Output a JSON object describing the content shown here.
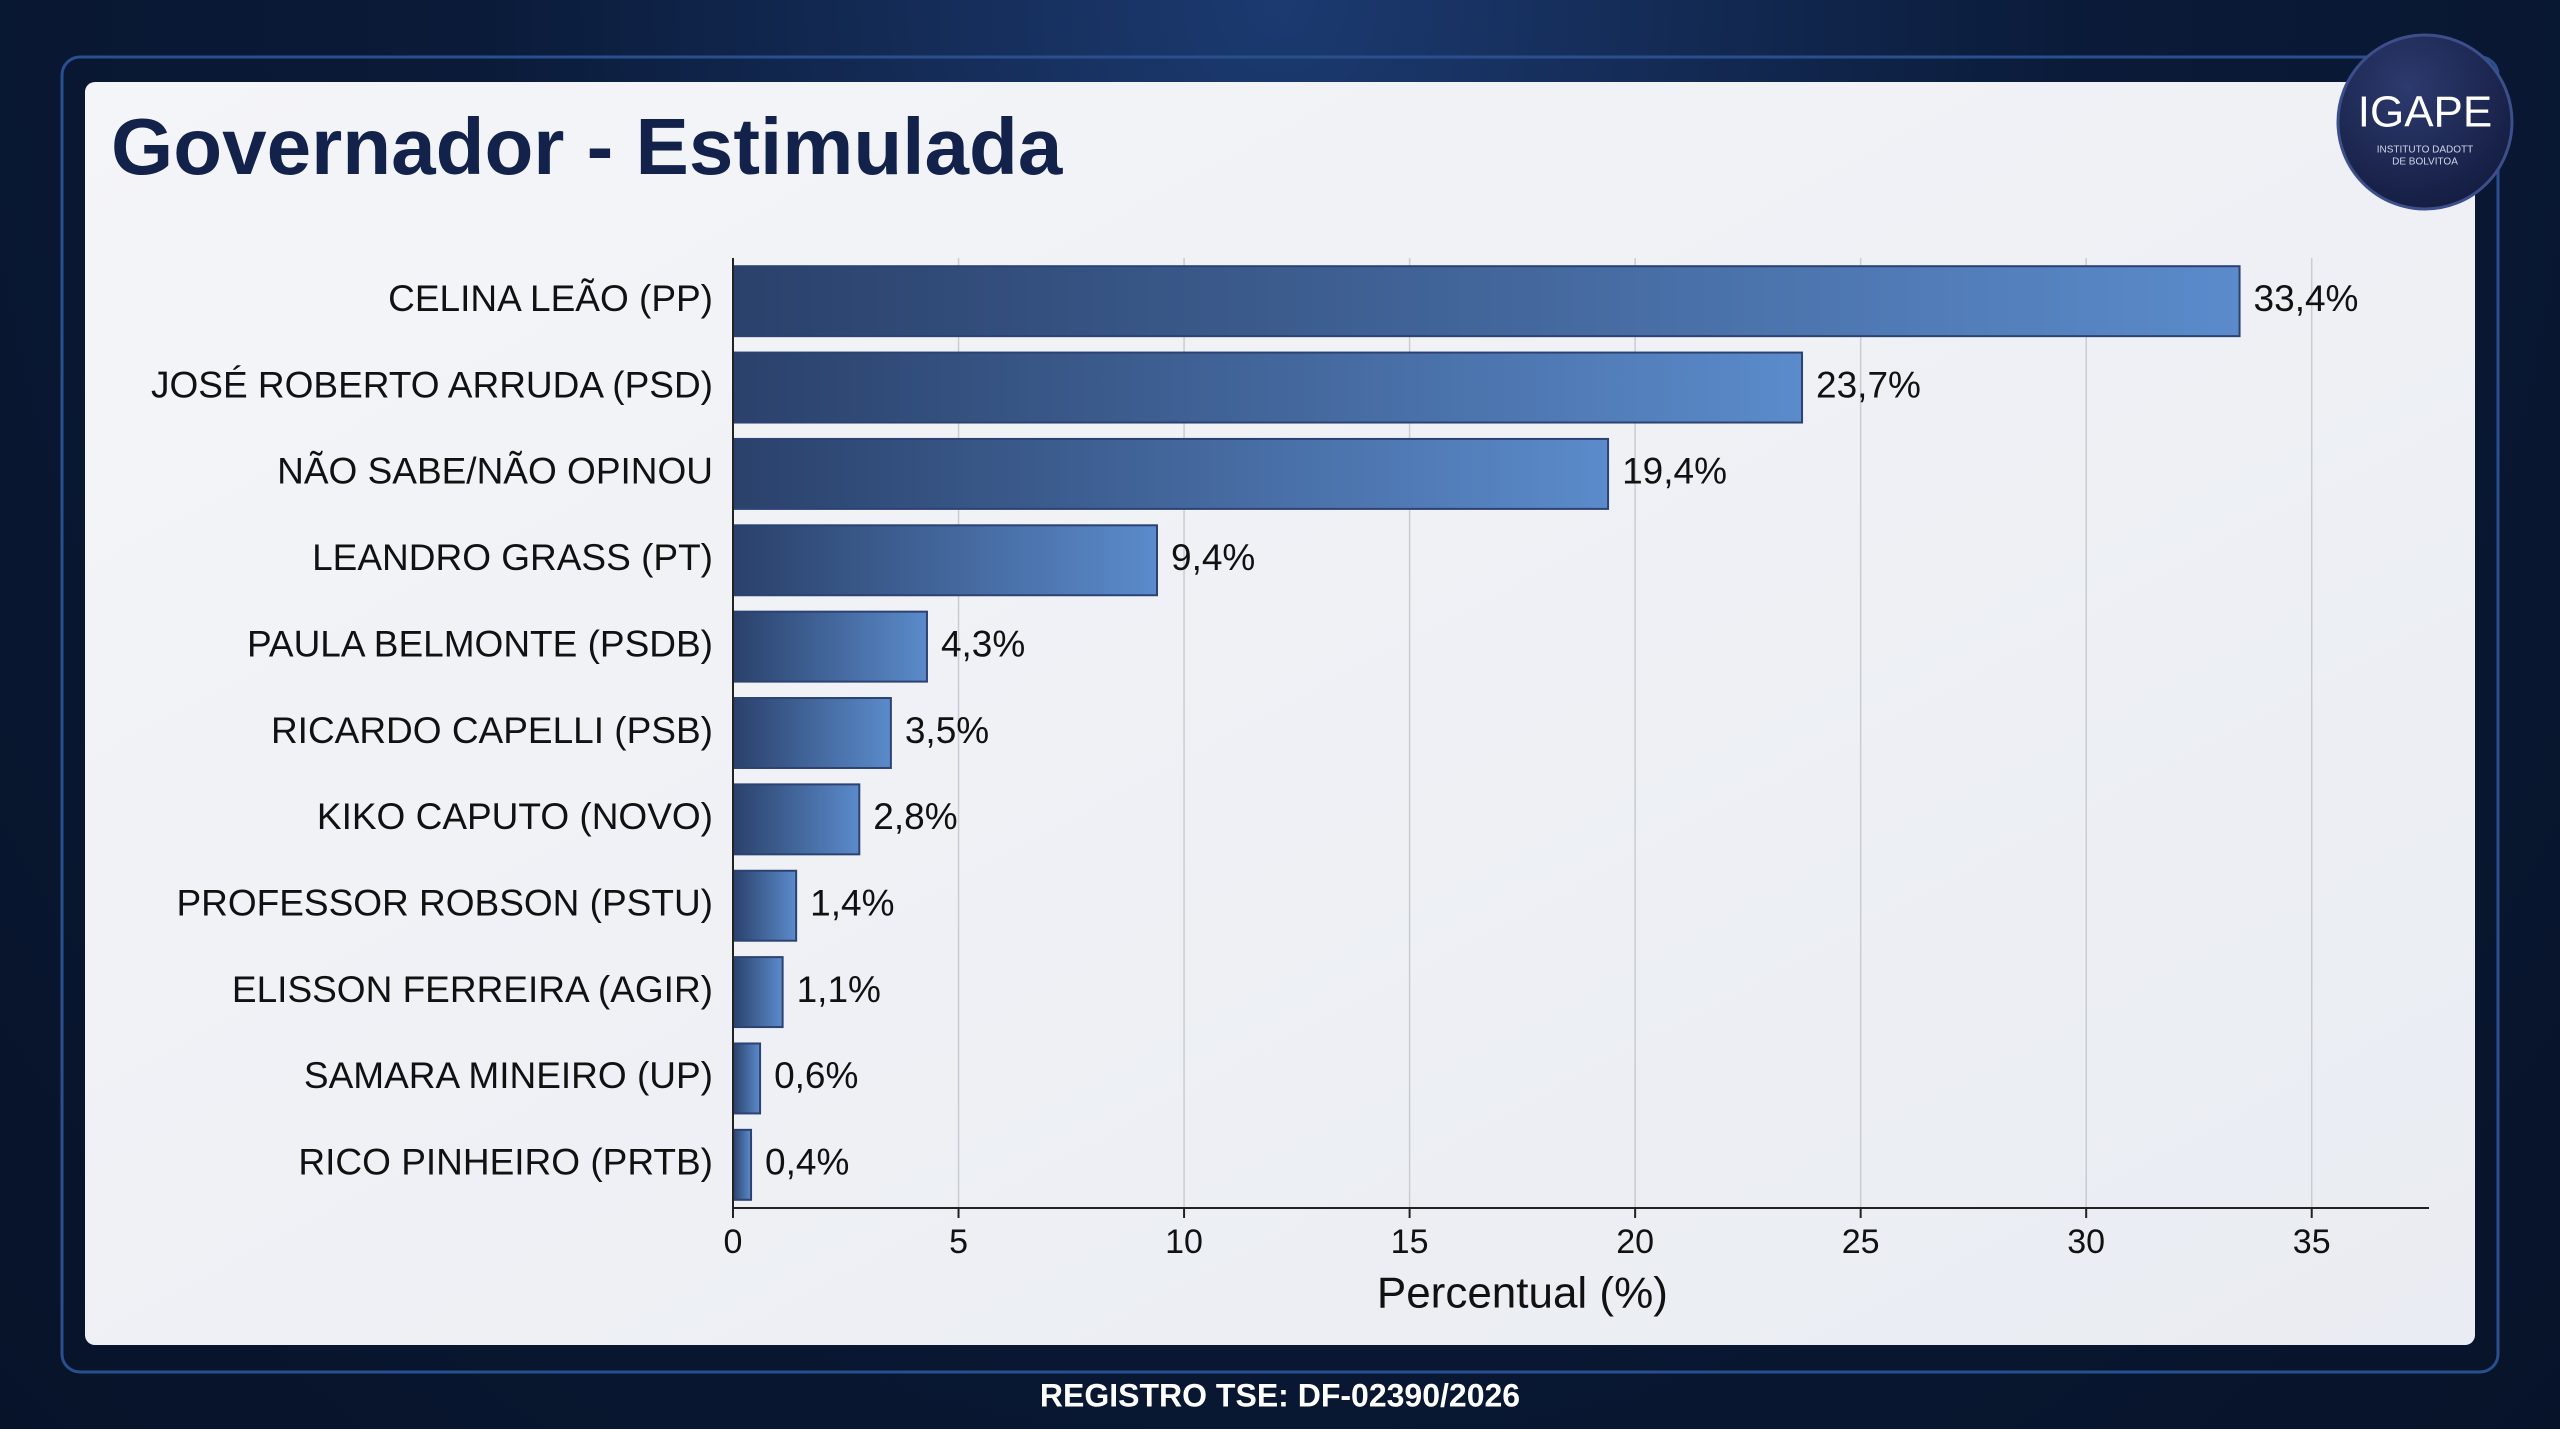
{
  "chart_data": {
    "type": "barh",
    "title": "Governador - Estimulada",
    "x_label": "Percentual (%)",
    "categories": [
      "CELINA LEÃO (PP)",
      "JOSÉ ROBERTO ARRUDA (PSD)",
      "NÃO SABE/NÃO OPINOU",
      "LEANDRO GRASS (PT)",
      "PAULA BELMONTE (PSDB)",
      "RICARDO CAPELLI (PSB)",
      "KIKO CAPUTO (NOVO)",
      "PROFESSOR ROBSON (PSTU)",
      "ELISSON FERREIRA (AGIR)",
      "SAMARA MINEIRO (UP)",
      "RICO PINHEIRO (PRTB)"
    ],
    "values": [
      33.4,
      23.7,
      19.4,
      9.4,
      4.3,
      3.5,
      2.8,
      1.4,
      1.1,
      0.6,
      0.4
    ],
    "value_labels": [
      "33,4%",
      "23,7%",
      "19,4%",
      "9,4%",
      "4,3%",
      "3,5%",
      "2,8%",
      "1,4%",
      "1,1%",
      "0,6%",
      "0,4%"
    ],
    "color": "#5b8bcb",
    "xlim": [
      0,
      37.6
    ],
    "xticks": [
      0,
      5,
      10,
      15,
      20,
      25,
      30,
      35
    ],
    "grid": true
  },
  "logo": {
    "name": "IGAPE",
    "line1": "INSTITUTO DADOTT",
    "line2": "DE BOLVITOA"
  },
  "footer": "REGISTRO TSE: DF-02390/2026"
}
